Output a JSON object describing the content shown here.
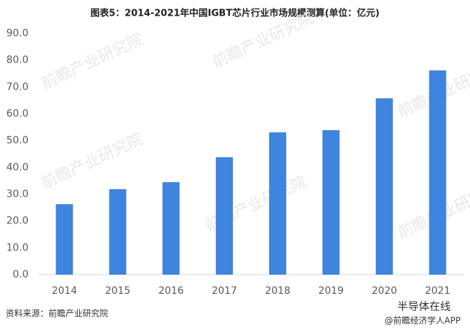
{
  "chart_data": {
    "type": "bar",
    "title": "图表5：2014-2021年中国IGBT芯片行业市场规模测算(单位：亿元)",
    "categories": [
      "2014",
      "2015",
      "2016",
      "2017",
      "2018",
      "2019",
      "2020",
      "2021"
    ],
    "values": [
      26.3,
      31.9,
      34.5,
      43.8,
      53.1,
      53.9,
      65.8,
      76.2
    ],
    "color": "#3f84de",
    "ylim": [
      0,
      90
    ],
    "yticks": [
      {
        "value": 0,
        "label": "0.0"
      },
      {
        "value": 10,
        "label": "10.0"
      },
      {
        "value": 20,
        "label": "20.0"
      },
      {
        "value": 30,
        "label": "30.0"
      },
      {
        "value": 40,
        "label": "40.0"
      },
      {
        "value": 50,
        "label": "50.0"
      },
      {
        "value": 60,
        "label": "60.0"
      },
      {
        "value": 70,
        "label": "70.0"
      },
      {
        "value": 80,
        "label": "80.0"
      },
      {
        "value": 90,
        "label": "90.0"
      }
    ],
    "grid": false,
    "source": "资料来源：前瞻产业研究院",
    "watermark": "前瞻产业研究院",
    "badge": "半导体在线",
    "badge_sub": "@前瞻经济学人APP"
  }
}
